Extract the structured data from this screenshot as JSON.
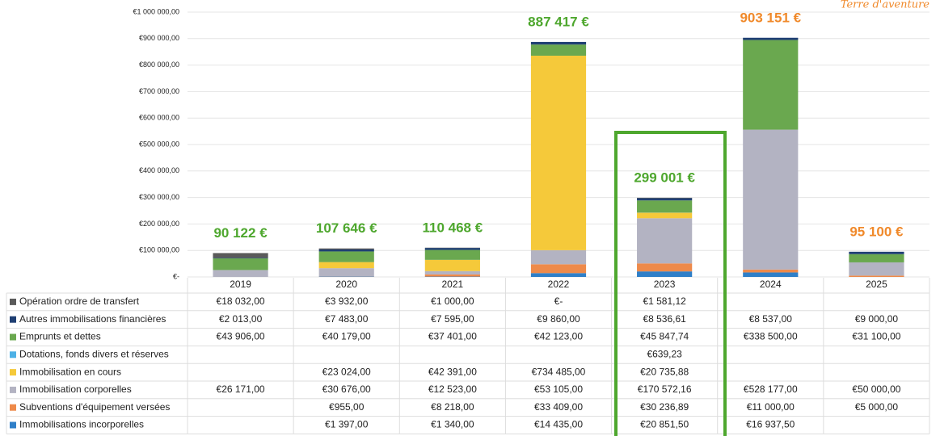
{
  "chart_data": {
    "type": "stacked_bar",
    "logo_text": "Terre d'aventure",
    "categories": [
      "2019",
      "2020",
      "2021",
      "2022",
      "2023",
      "2024",
      "2025"
    ],
    "ylim": [
      0,
      1000000
    ],
    "yticks": [
      {
        "value": 0,
        "label": "€-"
      },
      {
        "value": 100000,
        "label": "€100 000,00"
      },
      {
        "value": 200000,
        "label": "€200 000,00"
      },
      {
        "value": 300000,
        "label": "€300 000,00"
      },
      {
        "value": 400000,
        "label": "€400 000,00"
      },
      {
        "value": 500000,
        "label": "€500 000,00"
      },
      {
        "value": 600000,
        "label": "€600 000,00"
      },
      {
        "value": 700000,
        "label": "€700 000,00"
      },
      {
        "value": 800000,
        "label": "€800 000,00"
      },
      {
        "value": 900000,
        "label": "€900 000,00"
      },
      {
        "value": 1000000,
        "label": "€1 000 000,00"
      }
    ],
    "grid": true,
    "totals": {
      "values": [
        90122,
        107646,
        110468,
        887417,
        299001,
        903151,
        95100
      ],
      "value_labels": [
        "90 122 €",
        "107 646 €",
        "110 468 €",
        "887 417 €",
        "299 001 €",
        "903 151 €",
        "95 100 €"
      ],
      "colors": [
        "#4ea72e",
        "#4ea72e",
        "#4ea72e",
        "#4ea72e",
        "#4ea72e",
        "#f0892a",
        "#f0892a"
      ]
    },
    "series": [
      {
        "name": "Opération ordre de transfert",
        "color": "#5a5a5a",
        "values": [
          18032,
          3932,
          1000,
          0,
          1581.12,
          null,
          null
        ],
        "value_labels": [
          "€18 032,00",
          "€3 932,00",
          "€1 000,00",
          "€-",
          "€1 581,12",
          null,
          null
        ]
      },
      {
        "name": "Autres immobilisations financières",
        "color": "#1f3f73",
        "values": [
          2013,
          7483,
          7595,
          9860,
          8536.61,
          8537,
          9000
        ],
        "value_labels": [
          "€2 013,00",
          "€7 483,00",
          "€7 595,00",
          "€9 860,00",
          "€8 536,61",
          "€8 537,00",
          "€9 000,00"
        ]
      },
      {
        "name": "Emprunts et dettes",
        "color": "#6aa84f",
        "values": [
          43906,
          40179,
          37401,
          42123,
          45847.74,
          338500,
          31100
        ],
        "value_labels": [
          "€43 906,00",
          "€40 179,00",
          "€37 401,00",
          "€42 123,00",
          "€45 847,74",
          "€338 500,00",
          "€31 100,00"
        ]
      },
      {
        "name": "Dotations, fonds divers et réserves",
        "color": "#4db1e6",
        "values": [
          null,
          null,
          null,
          null,
          639.23,
          null,
          null
        ],
        "value_labels": [
          null,
          null,
          null,
          null,
          "€639,23",
          null,
          null
        ]
      },
      {
        "name": "Immobilisation en cours",
        "color": "#f5c93a",
        "values": [
          null,
          23024,
          42391,
          734485,
          20735.88,
          null,
          null
        ],
        "value_labels": [
          null,
          "€23 024,00",
          "€42 391,00",
          "€734 485,00",
          "€20 735,88",
          null,
          null
        ]
      },
      {
        "name": "Immobilisation corporelles",
        "color": "#b3b3c2",
        "values": [
          26171,
          30676,
          12523,
          53105,
          170572.16,
          528177,
          50000
        ],
        "value_labels": [
          "€26 171,00",
          "€30 676,00",
          "€12 523,00",
          "€53 105,00",
          "€170 572,16",
          "€528 177,00",
          "€50 000,00"
        ]
      },
      {
        "name": "Subventions d'équipement versées",
        "color": "#ee8a4a",
        "values": [
          null,
          955,
          8218,
          33409,
          30236.89,
          11000,
          5000
        ],
        "value_labels": [
          null,
          "€955,00",
          "€8 218,00",
          "€33 409,00",
          "€30 236,89",
          "€11 000,00",
          "€5 000,00"
        ]
      },
      {
        "name": "Immobilisations incorporelles",
        "color": "#2f7fc8",
        "values": [
          null,
          1397,
          1340,
          14435,
          20851.5,
          16937.5,
          null
        ],
        "value_labels": [
          null,
          "€1 397,00",
          "€1 340,00",
          "€14 435,00",
          "€20 851,50",
          "€16 937,50",
          null
        ]
      }
    ]
  }
}
